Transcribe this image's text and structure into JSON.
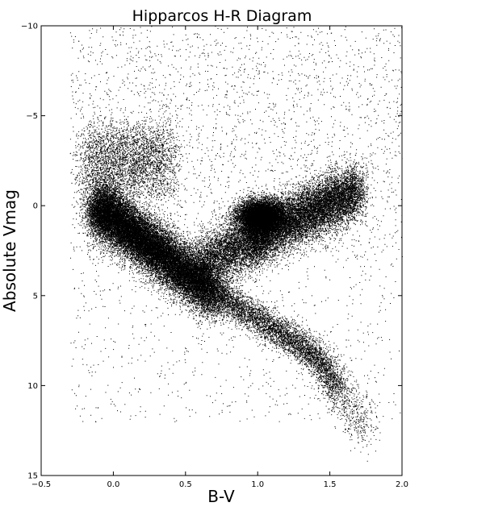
{
  "chart_data": {
    "type": "scatter",
    "title": "Hipparcos H-R Diagram",
    "xlabel": "B-V",
    "ylabel": "Absolute Vmag",
    "xlim": [
      -0.5,
      2.0
    ],
    "ylim": [
      15,
      -10
    ],
    "y_inverted": true,
    "grid": false,
    "legend": "none",
    "marker_color": "#000000",
    "x_ticks": [
      "−0.5",
      "0.0",
      "0.5",
      "1.0",
      "1.5",
      "2.0"
    ],
    "x_tick_values": [
      -0.5,
      0.0,
      0.5,
      1.0,
      1.5,
      2.0
    ],
    "y_ticks": [
      "−10",
      "−5",
      "0",
      "5",
      "10",
      "15"
    ],
    "y_tick_values": [
      -10,
      -5,
      0,
      5,
      10,
      15
    ],
    "approx_point_count": 60000,
    "density_regions": [
      {
        "name": "main sequence upper",
        "x": [
          -0.15,
          0.3
        ],
        "y": [
          -2.5,
          2.5
        ],
        "density": "very high"
      },
      {
        "name": "main sequence middle",
        "x": [
          0.3,
          0.75
        ],
        "y": [
          2.0,
          5.0
        ],
        "density": "very high"
      },
      {
        "name": "main sequence lower",
        "x": [
          0.75,
          1.55
        ],
        "y": [
          5.0,
          10.0
        ],
        "density": "medium"
      },
      {
        "name": "red dwarfs tail",
        "x": [
          1.45,
          1.75
        ],
        "y": [
          9.0,
          13.5
        ],
        "density": "low"
      },
      {
        "name": "red clump",
        "x": [
          0.9,
          1.15
        ],
        "y": [
          -0.3,
          1.5
        ],
        "density": "very high"
      },
      {
        "name": "red giant branch",
        "x": [
          1.0,
          1.7
        ],
        "y": [
          -2.0,
          2.0
        ],
        "density": "high"
      },
      {
        "name": "subgiants",
        "x": [
          0.6,
          1.0
        ],
        "y": [
          1.0,
          4.0
        ],
        "density": "medium"
      },
      {
        "name": "supergiants/scatter",
        "x": [
          -0.3,
          2.0
        ],
        "y": [
          -10,
          -2
        ],
        "density": "sparse"
      }
    ]
  }
}
